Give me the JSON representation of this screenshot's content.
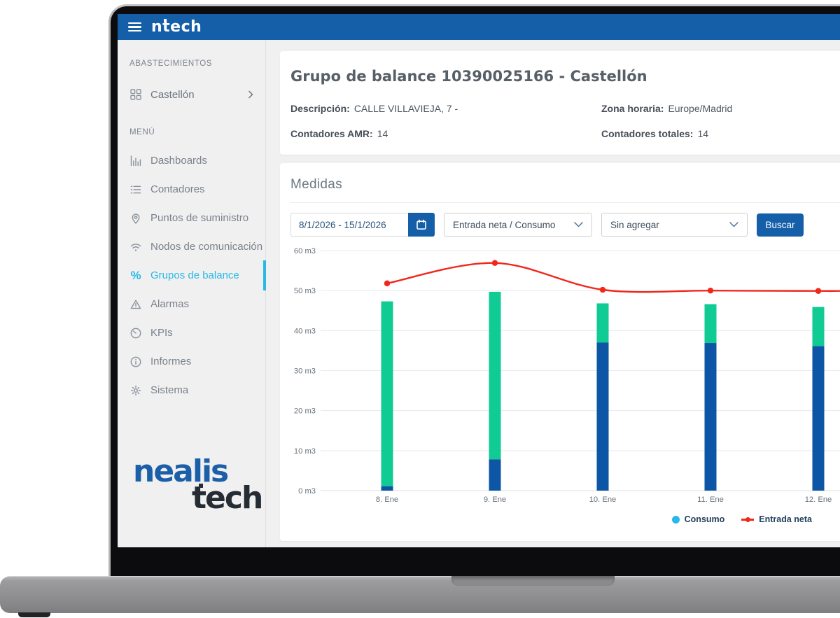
{
  "app_bar": {
    "logo_text": "ntech"
  },
  "sidebar": {
    "section_supplies_label": "ABASTECIMIENTOS",
    "supply_item": {
      "label": "Castellón",
      "icon": "grid-icon",
      "chevron": "chevron-right-icon"
    },
    "section_menu_label": "MENÚ",
    "items": [
      {
        "label": "Dashboards",
        "icon": "bar-chart-icon",
        "active": false
      },
      {
        "label": "Contadores",
        "icon": "list-icon",
        "active": false
      },
      {
        "label": "Puntos de suministro",
        "icon": "map-pin-icon",
        "active": false
      },
      {
        "label": "Nodos de comunicación",
        "icon": "wifi-icon",
        "active": false
      },
      {
        "label": "Grupos de balance",
        "icon": "percent-icon",
        "active": true
      },
      {
        "label": "Alarmas",
        "icon": "warning-triangle-icon",
        "active": false
      },
      {
        "label": "KPIs",
        "icon": "gauge-icon",
        "active": false
      },
      {
        "label": "Informes",
        "icon": "info-icon",
        "active": false
      },
      {
        "label": "Sistema",
        "icon": "gear-icon",
        "active": false
      }
    ],
    "active_color": "#29b9e6",
    "brand": {
      "line1": "nealis",
      "line2": "tech"
    }
  },
  "header": {
    "title": "Grupo de balance 10390025166 - Castellón",
    "fields": [
      {
        "label": "Descripción:",
        "value": "CALLE VILLAVIEJA, 7 -"
      },
      {
        "label": "Zona horaria:",
        "value": "Europe/Madrid"
      },
      {
        "label": "Contadores AMR:",
        "value": "14"
      },
      {
        "label": "Contadores totales:",
        "value": "14"
      }
    ]
  },
  "medidas": {
    "title": "Medidas",
    "date_range": "8/1/2026 - 15/1/2026",
    "series_select": "Entrada neta / Consumo",
    "aggregate_select": "Sin agregar",
    "search_button": "Buscar"
  },
  "chart_data": {
    "type": "bar",
    "categories": [
      "8. Ene",
      "9. Ene",
      "10. Ene",
      "11. Ene",
      "12. Ene"
    ],
    "unit": "m3",
    "ylim": [
      0,
      60
    ],
    "ytick_step": 10,
    "ytick_suffix": " m3",
    "grid": true,
    "bar_series": [
      {
        "id": "consumo-azul",
        "color": "#0d55a5",
        "values": [
          1.1,
          7.8,
          37.0,
          36.9,
          36.1
        ]
      },
      {
        "id": "consumo-verde",
        "color": "#10cb93",
        "values": [
          46.2,
          41.9,
          9.8,
          9.7,
          9.8
        ]
      }
    ],
    "line_series": {
      "name": "Entrada neta",
      "color": "#f2271c",
      "values": [
        51.8,
        56.9,
        50.2,
        50.0,
        49.9
      ]
    },
    "legend": [
      {
        "label": "Consumo",
        "color": "#29b8e8",
        "marker": "dot"
      },
      {
        "label": "Entrada neta",
        "color": "#f2271c",
        "marker": "line-dot"
      }
    ],
    "legend_position": "bottom-right"
  }
}
